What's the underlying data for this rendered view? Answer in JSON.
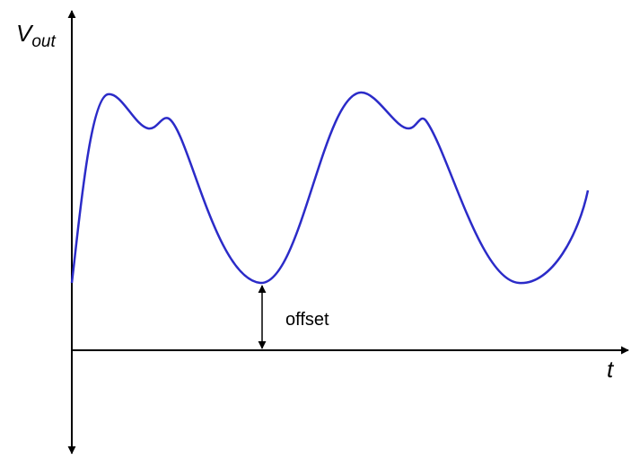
{
  "axes": {
    "y_label": "V",
    "y_label_sub": "out",
    "x_label": "t"
  },
  "annotation": "offset"
}
